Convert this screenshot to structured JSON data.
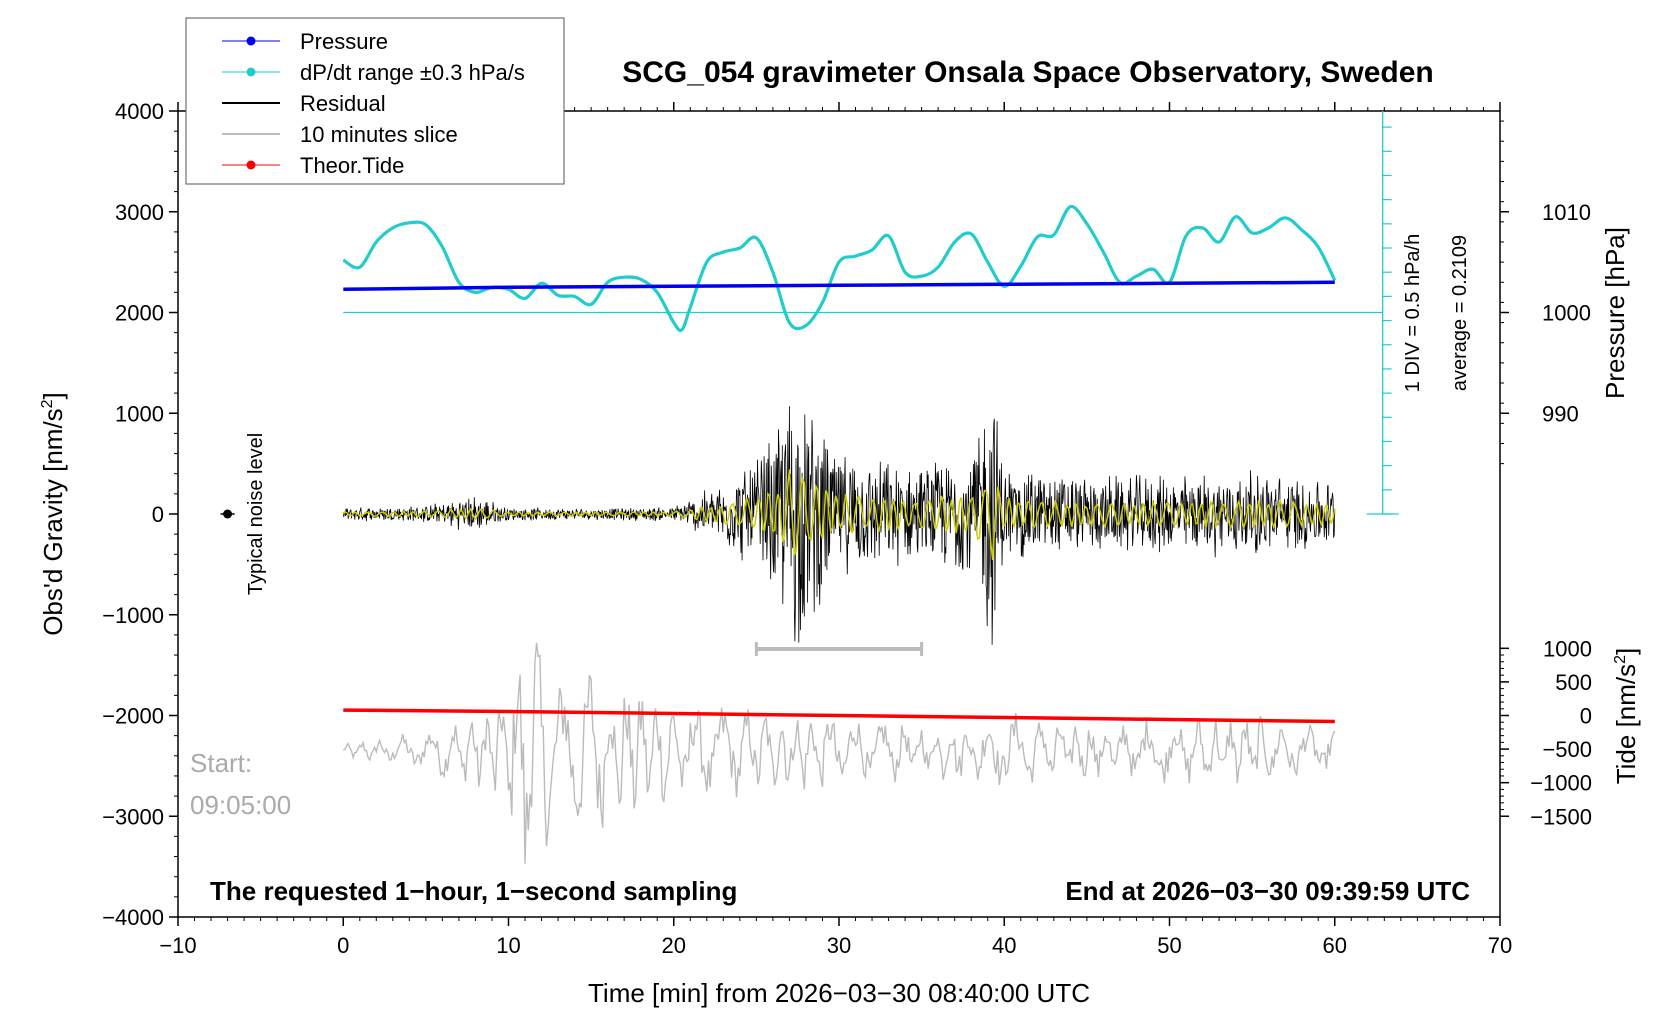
{
  "colors": {
    "pressure": "#0000ee",
    "dpdt": "#22cccc",
    "residual": "#000000",
    "slice": "#bbbbbb",
    "tide": "#ff0000",
    "smoothed": "#cccc00"
  },
  "chart_data": {
    "type": "line",
    "title": "SCG_054 gravimeter Onsala Space Observatory, Sweden",
    "xlabel": "Time [min] from 2026−03−30 08:40:00 UTC",
    "ylabel_left": "Obs'd Gravity [nm/s",
    "ylabel_left_sup": "2",
    "ylabel_left_end": "]",
    "ylabel_right_top": "Pressure [hPa]",
    "ylabel_right_bottom": "Tide [nm/s",
    "ylabel_right_bottom_sup": "2",
    "ylabel_right_bottom_end": "]",
    "xlim": [
      -10,
      70
    ],
    "ylim": [
      -4000,
      4000
    ],
    "x_ticks": [
      -10,
      0,
      10,
      20,
      30,
      40,
      50,
      60,
      70
    ],
    "x_tick_labels": [
      "−10",
      "0",
      "10",
      "20",
      "30",
      "40",
      "50",
      "60",
      "70"
    ],
    "y_ticks": [
      -4000,
      -3000,
      -2000,
      -1000,
      0,
      1000,
      2000,
      3000,
      4000
    ],
    "y_tick_labels": [
      "−4000",
      "−3000",
      "−2000",
      "−1000",
      "0",
      "1000",
      "2000",
      "3000",
      "4000"
    ],
    "pressure_axis": {
      "ticks": [
        990,
        1000,
        1010
      ],
      "labels": [
        "990",
        "1000",
        "1010"
      ],
      "gravity_equiv_at_1000": 2000,
      "nms2_per_hpa": 100
    },
    "tide_axis": {
      "ticks": [
        -1500,
        -1000,
        -500,
        0,
        500,
        1000
      ],
      "labels": [
        "−1500",
        "−1000",
        "−500",
        "0",
        "500",
        "1000"
      ],
      "gravity_equiv_at_0": -2000,
      "scale": 0.6667
    },
    "legend": [
      {
        "label": "Pressure",
        "series": "pressure",
        "marker": true
      },
      {
        "label": "dP/dt range ±0.3 hPa/s",
        "series": "dpdt",
        "marker": true
      },
      {
        "label": "Residual",
        "series": "residual",
        "marker": false
      },
      {
        "label": "10 minutes slice",
        "series": "slice",
        "marker": false
      },
      {
        "label": "Theor.Tide",
        "series": "tide",
        "marker": true
      }
    ],
    "series": [
      {
        "name": "Pressure",
        "unit": "hPa",
        "x": [
          0,
          10,
          20,
          30,
          40,
          50,
          60
        ],
        "values": [
          1002.3,
          1002.5,
          1002.6,
          1002.7,
          1002.8,
          1002.9,
          1003.0
        ]
      },
      {
        "name": "dP/dt range ±0.3 hPa/s",
        "unit": "nm/s2 (plot units)",
        "x": [
          0,
          1,
          2,
          3,
          4,
          5,
          6,
          7,
          8,
          9,
          10,
          11,
          12,
          13,
          14,
          15,
          16,
          17,
          18,
          19,
          20,
          20.5,
          21,
          22,
          23,
          24,
          25,
          26,
          27,
          28,
          29,
          30,
          31,
          32,
          33,
          34,
          35,
          36,
          37,
          38,
          39,
          40,
          41,
          42,
          43,
          44,
          45,
          46,
          47,
          48,
          49,
          50,
          51,
          52,
          53,
          54,
          55,
          56,
          57,
          58,
          59,
          60
        ],
        "values": [
          2520,
          2450,
          2700,
          2840,
          2890,
          2870,
          2650,
          2300,
          2200,
          2250,
          2230,
          2140,
          2290,
          2170,
          2160,
          2080,
          2300,
          2350,
          2330,
          2200,
          1900,
          1830,
          2050,
          2500,
          2600,
          2640,
          2740,
          2400,
          1900,
          1870,
          2100,
          2500,
          2560,
          2620,
          2760,
          2400,
          2360,
          2450,
          2700,
          2780,
          2500,
          2260,
          2460,
          2750,
          2770,
          3050,
          2880,
          2600,
          2300,
          2360,
          2430,
          2300,
          2760,
          2840,
          2700,
          2950,
          2790,
          2840,
          2940,
          2820,
          2650,
          2320
        ]
      },
      {
        "name": "Residual",
        "unit": "nm/s2",
        "x": [
          0,
          5,
          8,
          10,
          15,
          20,
          23,
          25,
          26.5,
          27,
          30,
          35,
          38,
          39.3,
          40,
          45,
          50,
          55,
          60
        ],
        "envelope": [
          70,
          90,
          200,
          70,
          60,
          80,
          350,
          600,
          1020,
          1560,
          650,
          500,
          700,
          1470,
          520,
          400,
          420,
          460,
          350
        ]
      },
      {
        "name": "10 minutes slice",
        "unit": "nm/s2 (plot units)",
        "x": [
          0,
          5,
          9,
          10.5,
          11,
          13,
          15,
          20,
          25,
          30,
          35,
          40,
          45,
          50,
          55,
          60
        ],
        "envelope": [
          70,
          210,
          500,
          1050,
          1550,
          750,
          900,
          550,
          450,
          420,
          280,
          400,
          320,
          350,
          380,
          220
        ],
        "baseline": -2350
      },
      {
        "name": "Theor.Tide",
        "unit": "nm/s2",
        "x": [
          0,
          10,
          20,
          30,
          40,
          50,
          60
        ],
        "values": [
          80,
          60,
          30,
          0,
          -30,
          -60,
          -90
        ]
      }
    ],
    "annotations": {
      "noise_label": "Typical noise level",
      "noise_point": {
        "x": -7,
        "y": 0
      },
      "slice_bar": {
        "x_start": 25,
        "x_end": 35,
        "y": -1340
      },
      "div_label": "1 DIV = 0.5 hPa/h",
      "average_label": "average = 0.2109",
      "scale_axis_x": 62.9,
      "start_label": "Start:",
      "start_time": "09:05:00",
      "bottom_left": "The requested 1−hour, 1−second sampling",
      "bottom_right": "End at 2026−03−30 09:39:59 UTC"
    }
  }
}
